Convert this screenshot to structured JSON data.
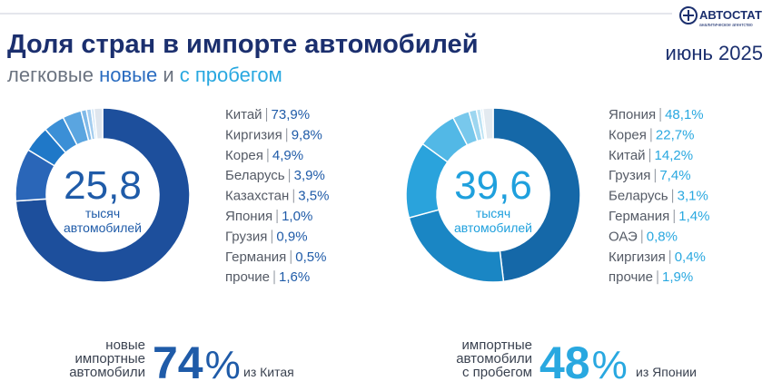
{
  "logo": {
    "name": "АВТОСТАТ",
    "tagline": "аналитическое агентство"
  },
  "header": {
    "title": "Доля стран в импорте автомобилей",
    "subtitle": [
      "легковые",
      "новые",
      "и",
      "с пробегом"
    ],
    "date": "июнь 2025"
  },
  "chart_data": [
    {
      "type": "pie",
      "categories": [
        "Китай",
        "Киргизия",
        "Корея",
        "Беларусь",
        "Казахстан",
        "Япония",
        "Грузия",
        "Германия",
        "прочие"
      ],
      "values": [
        73.9,
        9.8,
        4.9,
        3.9,
        3.5,
        1.0,
        0.9,
        0.5,
        1.6
      ],
      "value_labels": [
        "73,9%",
        "9,8%",
        "4,9%",
        "3,9%",
        "3,5%",
        "1,0%",
        "0,9%",
        "0,5%",
        "1,6%"
      ],
      "colors": [
        "#1d4f9c",
        "#2a66b8",
        "#1f78c8",
        "#3b8fd6",
        "#5aa5e0",
        "#7fb9e8",
        "#a4cdef",
        "#c6dff4",
        "#dfe6ee"
      ],
      "label_color": "#1f5ba8",
      "total": "25,8",
      "total_caption": [
        "тысяч",
        "автомобилей"
      ]
    },
    {
      "type": "pie",
      "categories": [
        "Япония",
        "Корея",
        "Китай",
        "Грузия",
        "Беларусь",
        "Германия",
        "ОАЭ",
        "Киргизия",
        "прочие"
      ],
      "values": [
        48.1,
        22.7,
        14.2,
        7.4,
        3.1,
        1.4,
        0.8,
        0.4,
        1.9
      ],
      "value_labels": [
        "48,1%",
        "22,7%",
        "14,2%",
        "7,4%",
        "3,1%",
        "1,4%",
        "0,8%",
        "0,4%",
        "1,9%"
      ],
      "colors": [
        "#1568a8",
        "#1a86c4",
        "#2aa3dc",
        "#52b8e6",
        "#78c8ec",
        "#9dd6f0",
        "#bde3f4",
        "#d5ecf8",
        "#e3eaf0"
      ],
      "label_color": "#29a8e0",
      "total": "39,6",
      "total_caption": [
        "тысяч",
        "автомобилей"
      ]
    }
  ],
  "notes": [
    {
      "lines": [
        "новые",
        "импортные",
        "автомобили"
      ],
      "figure": "74",
      "unit": "%",
      "source": "из Китая"
    },
    {
      "lines": [
        "импортные",
        "автомобили",
        "с пробегом"
      ],
      "figure": "48",
      "unit": "%",
      "source": "из Японии"
    }
  ]
}
